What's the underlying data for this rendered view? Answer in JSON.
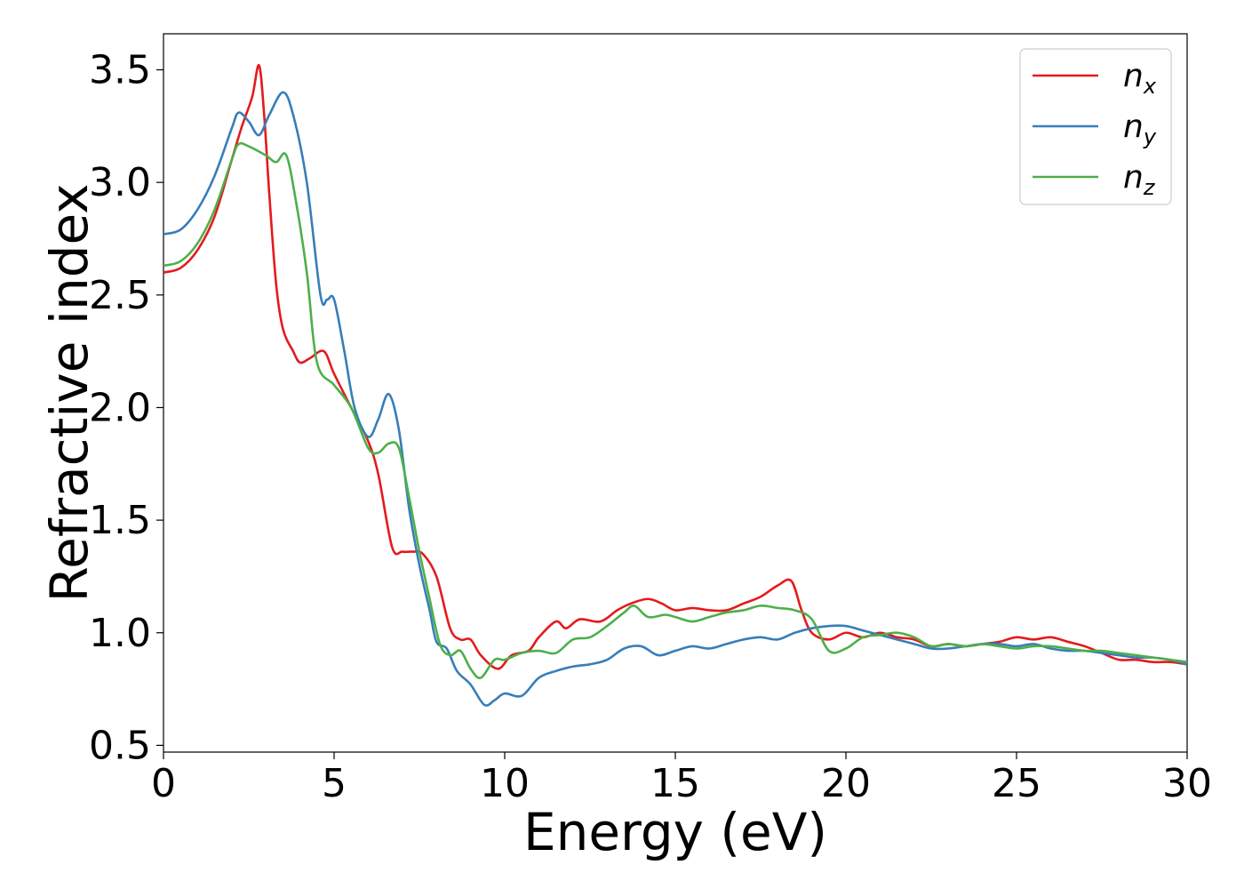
{
  "chart_data": {
    "type": "line",
    "title": "",
    "xlabel": "Energy (eV)",
    "ylabel": "Refractive index",
    "xlim": [
      0,
      30
    ],
    "ylim": [
      0.47,
      3.66
    ],
    "xticks": [
      0,
      5,
      10,
      15,
      20,
      25,
      30
    ],
    "xtick_labels": [
      "0",
      "5",
      "10",
      "15",
      "20",
      "25",
      "30"
    ],
    "yticks": [
      0.5,
      1.0,
      1.5,
      2.0,
      2.5,
      3.0,
      3.5
    ],
    "ytick_labels": [
      "0.5",
      "1.0",
      "1.5",
      "2.0",
      "2.5",
      "3.0",
      "3.5"
    ],
    "grid": false,
    "legend_position": "top-right",
    "series": [
      {
        "name": "n",
        "subscript": "x",
        "color": "#e41a1c",
        "points": [
          [
            0,
            2.6
          ],
          [
            0.5,
            2.62
          ],
          [
            1.0,
            2.7
          ],
          [
            1.5,
            2.85
          ],
          [
            2.0,
            3.1
          ],
          [
            2.3,
            3.25
          ],
          [
            2.6,
            3.38
          ],
          [
            2.8,
            3.52
          ],
          [
            2.95,
            3.3
          ],
          [
            3.1,
            2.95
          ],
          [
            3.3,
            2.55
          ],
          [
            3.5,
            2.35
          ],
          [
            3.8,
            2.25
          ],
          [
            4.0,
            2.2
          ],
          [
            4.3,
            2.22
          ],
          [
            4.7,
            2.25
          ],
          [
            5.0,
            2.15
          ],
          [
            5.5,
            2.0
          ],
          [
            6.0,
            1.85
          ],
          [
            6.3,
            1.7
          ],
          [
            6.7,
            1.38
          ],
          [
            7.0,
            1.36
          ],
          [
            7.3,
            1.36
          ],
          [
            7.6,
            1.35
          ],
          [
            8.0,
            1.25
          ],
          [
            8.4,
            1.02
          ],
          [
            8.7,
            0.97
          ],
          [
            9.0,
            0.97
          ],
          [
            9.3,
            0.9
          ],
          [
            9.8,
            0.84
          ],
          [
            10.2,
            0.9
          ],
          [
            10.7,
            0.92
          ],
          [
            11.0,
            0.98
          ],
          [
            11.5,
            1.05
          ],
          [
            11.8,
            1.02
          ],
          [
            12.2,
            1.06
          ],
          [
            12.8,
            1.05
          ],
          [
            13.3,
            1.1
          ],
          [
            13.7,
            1.13
          ],
          [
            14.2,
            1.15
          ],
          [
            14.6,
            1.13
          ],
          [
            15.0,
            1.1
          ],
          [
            15.5,
            1.11
          ],
          [
            16.0,
            1.1
          ],
          [
            16.5,
            1.1
          ],
          [
            17.0,
            1.13
          ],
          [
            17.5,
            1.16
          ],
          [
            18.0,
            1.21
          ],
          [
            18.4,
            1.23
          ],
          [
            18.7,
            1.1
          ],
          [
            19.0,
            1.0
          ],
          [
            19.5,
            0.97
          ],
          [
            20.0,
            1.0
          ],
          [
            20.5,
            0.98
          ],
          [
            21.0,
            1.0
          ],
          [
            21.5,
            0.98
          ],
          [
            22.0,
            0.97
          ],
          [
            22.5,
            0.94
          ],
          [
            23.0,
            0.95
          ],
          [
            23.5,
            0.94
          ],
          [
            24.0,
            0.95
          ],
          [
            24.5,
            0.96
          ],
          [
            25.0,
            0.98
          ],
          [
            25.5,
            0.97
          ],
          [
            26.0,
            0.98
          ],
          [
            26.5,
            0.96
          ],
          [
            27.0,
            0.94
          ],
          [
            27.5,
            0.91
          ],
          [
            28.0,
            0.88
          ],
          [
            28.5,
            0.88
          ],
          [
            29.0,
            0.87
          ],
          [
            29.5,
            0.87
          ],
          [
            30.0,
            0.86
          ]
        ]
      },
      {
        "name": "n",
        "subscript": "y",
        "color": "#377eb8",
        "points": [
          [
            0,
            2.77
          ],
          [
            0.5,
            2.79
          ],
          [
            1.0,
            2.88
          ],
          [
            1.5,
            3.03
          ],
          [
            2.0,
            3.24
          ],
          [
            2.2,
            3.31
          ],
          [
            2.5,
            3.27
          ],
          [
            2.8,
            3.21
          ],
          [
            3.1,
            3.3
          ],
          [
            3.5,
            3.4
          ],
          [
            3.8,
            3.3
          ],
          [
            4.2,
            3.0
          ],
          [
            4.6,
            2.5
          ],
          [
            4.8,
            2.48
          ],
          [
            5.0,
            2.48
          ],
          [
            5.3,
            2.25
          ],
          [
            5.6,
            2.0
          ],
          [
            6.0,
            1.87
          ],
          [
            6.3,
            1.95
          ],
          [
            6.6,
            2.06
          ],
          [
            6.9,
            1.9
          ],
          [
            7.2,
            1.55
          ],
          [
            7.5,
            1.3
          ],
          [
            7.8,
            1.1
          ],
          [
            8.0,
            0.96
          ],
          [
            8.3,
            0.93
          ],
          [
            8.6,
            0.83
          ],
          [
            9.0,
            0.77
          ],
          [
            9.4,
            0.68
          ],
          [
            9.7,
            0.7
          ],
          [
            10.0,
            0.73
          ],
          [
            10.5,
            0.72
          ],
          [
            11.0,
            0.8
          ],
          [
            11.5,
            0.83
          ],
          [
            12.0,
            0.85
          ],
          [
            12.5,
            0.86
          ],
          [
            13.0,
            0.88
          ],
          [
            13.5,
            0.93
          ],
          [
            14.0,
            0.94
          ],
          [
            14.5,
            0.9
          ],
          [
            15.0,
            0.92
          ],
          [
            15.5,
            0.94
          ],
          [
            16.0,
            0.93
          ],
          [
            16.5,
            0.95
          ],
          [
            17.0,
            0.97
          ],
          [
            17.5,
            0.98
          ],
          [
            18.0,
            0.97
          ],
          [
            18.5,
            1.0
          ],
          [
            19.0,
            1.02
          ],
          [
            19.5,
            1.03
          ],
          [
            20.0,
            1.03
          ],
          [
            20.5,
            1.01
          ],
          [
            21.0,
            0.99
          ],
          [
            21.5,
            0.97
          ],
          [
            22.0,
            0.95
          ],
          [
            22.5,
            0.93
          ],
          [
            23.0,
            0.93
          ],
          [
            23.5,
            0.94
          ],
          [
            24.0,
            0.95
          ],
          [
            24.5,
            0.95
          ],
          [
            25.0,
            0.94
          ],
          [
            25.5,
            0.95
          ],
          [
            26.0,
            0.93
          ],
          [
            26.5,
            0.92
          ],
          [
            27.0,
            0.92
          ],
          [
            27.5,
            0.91
          ],
          [
            28.0,
            0.9
          ],
          [
            28.5,
            0.89
          ],
          [
            29.0,
            0.89
          ],
          [
            29.5,
            0.88
          ],
          [
            30.0,
            0.86
          ]
        ]
      },
      {
        "name": "n",
        "subscript": "z",
        "color": "#4daf4a",
        "points": [
          [
            0,
            2.63
          ],
          [
            0.5,
            2.65
          ],
          [
            1.0,
            2.73
          ],
          [
            1.5,
            2.88
          ],
          [
            2.0,
            3.1
          ],
          [
            2.2,
            3.17
          ],
          [
            2.5,
            3.16
          ],
          [
            3.0,
            3.12
          ],
          [
            3.3,
            3.09
          ],
          [
            3.6,
            3.12
          ],
          [
            3.9,
            2.9
          ],
          [
            4.2,
            2.6
          ],
          [
            4.5,
            2.2
          ],
          [
            5.0,
            2.1
          ],
          [
            5.5,
            2.0
          ],
          [
            6.0,
            1.82
          ],
          [
            6.3,
            1.8
          ],
          [
            6.6,
            1.84
          ],
          [
            6.9,
            1.82
          ],
          [
            7.2,
            1.6
          ],
          [
            7.5,
            1.36
          ],
          [
            7.8,
            1.15
          ],
          [
            8.1,
            0.95
          ],
          [
            8.4,
            0.9
          ],
          [
            8.7,
            0.92
          ],
          [
            9.0,
            0.84
          ],
          [
            9.3,
            0.8
          ],
          [
            9.7,
            0.88
          ],
          [
            10.0,
            0.88
          ],
          [
            10.5,
            0.91
          ],
          [
            11.0,
            0.92
          ],
          [
            11.5,
            0.91
          ],
          [
            12.0,
            0.97
          ],
          [
            12.5,
            0.98
          ],
          [
            13.0,
            1.03
          ],
          [
            13.5,
            1.09
          ],
          [
            13.8,
            1.12
          ],
          [
            14.2,
            1.07
          ],
          [
            14.7,
            1.08
          ],
          [
            15.0,
            1.07
          ],
          [
            15.5,
            1.05
          ],
          [
            16.0,
            1.07
          ],
          [
            16.5,
            1.09
          ],
          [
            17.0,
            1.1
          ],
          [
            17.5,
            1.12
          ],
          [
            18.0,
            1.11
          ],
          [
            18.5,
            1.1
          ],
          [
            19.0,
            1.06
          ],
          [
            19.5,
            0.92
          ],
          [
            20.0,
            0.93
          ],
          [
            20.5,
            0.98
          ],
          [
            21.0,
            0.99
          ],
          [
            21.5,
            1.0
          ],
          [
            22.0,
            0.98
          ],
          [
            22.5,
            0.94
          ],
          [
            23.0,
            0.95
          ],
          [
            23.5,
            0.94
          ],
          [
            24.0,
            0.95
          ],
          [
            24.5,
            0.94
          ],
          [
            25.0,
            0.93
          ],
          [
            25.5,
            0.94
          ],
          [
            26.0,
            0.94
          ],
          [
            26.5,
            0.93
          ],
          [
            27.0,
            0.92
          ],
          [
            27.5,
            0.92
          ],
          [
            28.0,
            0.91
          ],
          [
            28.5,
            0.9
          ],
          [
            29.0,
            0.89
          ],
          [
            29.5,
            0.88
          ],
          [
            30.0,
            0.87
          ]
        ]
      }
    ]
  }
}
